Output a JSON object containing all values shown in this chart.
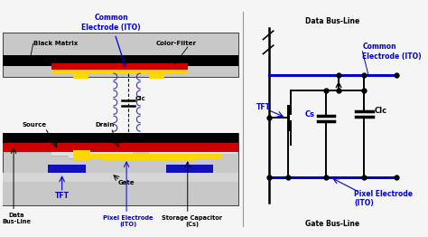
{
  "bg_color": "#f5f5f5",
  "colors": {
    "black": "#000000",
    "blue_label": "#0000CC",
    "red": "#CC0000",
    "yellow": "#FFD700",
    "blue_gate": "#1111BB",
    "gray_sub": "#CCCCCC",
    "gray_sub2": "#BBBBBB",
    "white": "#FFFFFF",
    "dark_gray": "#888888"
  },
  "labels": {
    "black_matrix": "Black Matrix",
    "color_filter": "Color-Filter",
    "common_electrode_left": "Common\nElectrode (ITO)",
    "source": "Source",
    "drain": "Drain",
    "gate": "Gate",
    "tft_left": "TFT",
    "data_bus_left": "Data\nBus-Line",
    "pixel_electrode_left": "Pixel Electrode\n(ITO)",
    "storage_cap": "Storage Capacitor\n(Cs)",
    "clc_left": "Clc",
    "data_bus_right": "Data Bus-Line",
    "common_electrode_right": "Common\nElectrode (ITO)",
    "tft_right": "TFT",
    "cs_label": "Cs",
    "clc_label": "Clc",
    "pixel_electrode_right": "Pixel Electrode\n(ITO)",
    "gate_bus_line": "Gate Bus-Line"
  }
}
